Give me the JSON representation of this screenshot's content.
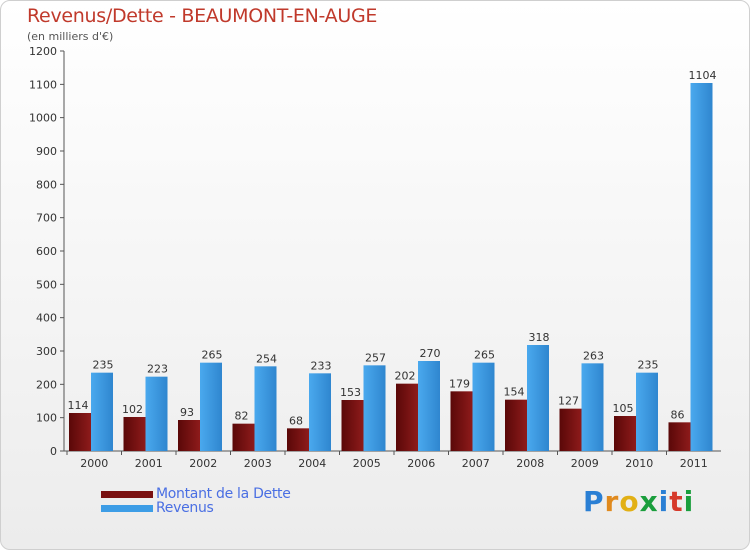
{
  "chart_data": {
    "type": "bar",
    "title": "Revenus/Dette - BEAUMONT-EN-AUGE",
    "subtitle": "(en milliers d'€)",
    "categories": [
      "2000",
      "2001",
      "2002",
      "2003",
      "2004",
      "2005",
      "2006",
      "2007",
      "2008",
      "2009",
      "2010",
      "2011"
    ],
    "series": [
      {
        "name": "Montant de la Dette",
        "color": "#7a1010",
        "values": [
          114,
          102,
          93,
          82,
          68,
          153,
          202,
          179,
          154,
          127,
          105,
          86
        ]
      },
      {
        "name": "Revenus",
        "color": "#3d9de6",
        "values": [
          235,
          223,
          265,
          254,
          233,
          257,
          270,
          265,
          318,
          263,
          235,
          1104
        ]
      }
    ],
    "ylim": [
      0,
      1200
    ],
    "yticks": [
      0,
      100,
      200,
      300,
      400,
      500,
      600,
      700,
      800,
      900,
      1000,
      1100,
      1200
    ],
    "grid": false,
    "legend_position": "bottom-left"
  },
  "logo": {
    "text": "Proxiti",
    "letters": [
      "P",
      "r",
      "o",
      "x",
      "i",
      "t",
      "i"
    ],
    "colors": [
      "#2a7fd4",
      "#e08a1e",
      "#e2b015",
      "#1a9e3c",
      "#2a7fd4",
      "#d63a2b",
      "#1a9e3c"
    ]
  }
}
